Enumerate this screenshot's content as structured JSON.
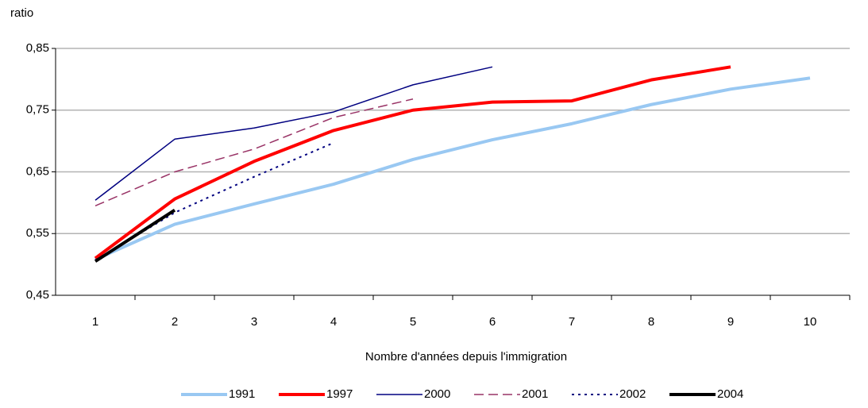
{
  "chart_data": {
    "type": "line",
    "y_label": "ratio",
    "x_label": "Nombre d'années depuis l'immigration",
    "categories": [
      "1",
      "2",
      "3",
      "4",
      "5",
      "6",
      "7",
      "8",
      "9",
      "10"
    ],
    "ylim": [
      0.45,
      0.85
    ],
    "yticks": [
      {
        "value": 0.45,
        "label": "0,45"
      },
      {
        "value": 0.55,
        "label": "0,55"
      },
      {
        "value": 0.65,
        "label": "0,65"
      },
      {
        "value": 0.75,
        "label": "0,75"
      },
      {
        "value": 0.85,
        "label": "0,85"
      }
    ],
    "grid": true,
    "legend": "bottom",
    "series": [
      {
        "name": "1991",
        "color": "#99c8f2",
        "width": 4,
        "dash": "solid",
        "values": [
          0.508,
          0.565,
          0.598,
          0.63,
          0.67,
          0.702,
          0.728,
          0.759,
          0.784,
          0.802
        ]
      },
      {
        "name": "1997",
        "color": "#ff0000",
        "width": 4,
        "dash": "solid",
        "values": [
          0.51,
          0.606,
          0.667,
          0.717,
          0.75,
          0.763,
          0.765,
          0.799,
          0.82,
          null
        ]
      },
      {
        "name": "2000",
        "color": "#000080",
        "width": 1.5,
        "dash": "solid",
        "values": [
          0.604,
          0.703,
          0.721,
          0.747,
          0.791,
          0.82,
          null,
          null,
          null,
          null
        ]
      },
      {
        "name": "2001",
        "color": "#993366",
        "width": 1.5,
        "dash": "dashed",
        "values": [
          0.595,
          0.65,
          0.687,
          0.738,
          0.768,
          null,
          null,
          null,
          null,
          null
        ]
      },
      {
        "name": "2002",
        "color": "#000080",
        "width": 2,
        "dash": "dotted",
        "values": [
          0.507,
          0.584,
          0.642,
          0.697,
          null,
          null,
          null,
          null,
          null,
          null
        ]
      },
      {
        "name": "2004",
        "color": "#000000",
        "width": 4,
        "dash": "solid",
        "values": [
          0.505,
          0.588,
          null,
          null,
          null,
          null,
          null,
          null,
          null,
          null
        ]
      }
    ]
  }
}
